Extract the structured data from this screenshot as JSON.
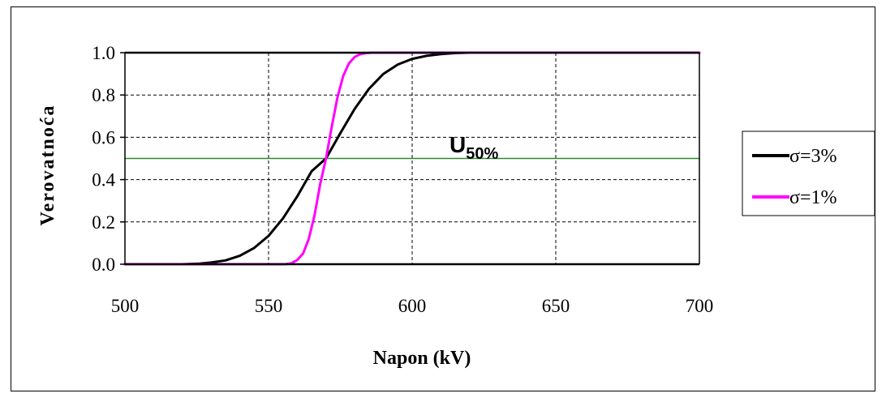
{
  "chart_data": {
    "type": "line",
    "title": "",
    "xlabel": "Napon (kV)",
    "ylabel": "Verovatnoća",
    "xlim": [
      500,
      700
    ],
    "ylim": [
      0,
      1
    ],
    "x_ticks": [
      "500",
      "550",
      "600",
      "650",
      "700"
    ],
    "y_ticks": [
      "0.0",
      "0.2",
      "0.4",
      "0.6",
      "0.8",
      "1.0"
    ],
    "x_tick_values": [
      500,
      550,
      600,
      650,
      700
    ],
    "y_tick_values": [
      0,
      0.2,
      0.4,
      0.6,
      0.8,
      1.0
    ],
    "grid": true,
    "legend_position": "right",
    "reference_line": {
      "y": 0.5,
      "color": "#2e8b2e"
    },
    "annotation": {
      "main": "U",
      "sub": "50%"
    },
    "series": [
      {
        "name": "σ=3%",
        "color": "#000000",
        "x": [
          500,
          520,
          526,
          530,
          535,
          540,
          545,
          550,
          555,
          560,
          565,
          570,
          575,
          580,
          585,
          590,
          595,
          600,
          605,
          610,
          615,
          620,
          700
        ],
        "y": [
          0.0,
          0.0,
          0.003,
          0.008,
          0.018,
          0.04,
          0.077,
          0.134,
          0.216,
          0.321,
          0.44,
          0.5,
          0.62,
          0.735,
          0.83,
          0.9,
          0.944,
          0.971,
          0.985,
          0.993,
          0.998,
          1.0,
          1.0
        ]
      },
      {
        "name": "σ=1%",
        "color": "#ff00ff",
        "x": [
          500,
          556,
          558,
          560,
          562,
          564,
          566,
          568,
          570,
          572,
          574,
          576,
          578,
          580,
          582,
          584,
          586,
          700
        ],
        "y": [
          0.0,
          0.0,
          0.005,
          0.02,
          0.05,
          0.12,
          0.23,
          0.38,
          0.5,
          0.65,
          0.79,
          0.89,
          0.95,
          0.98,
          0.993,
          0.998,
          1.0,
          1.0
        ]
      }
    ]
  }
}
